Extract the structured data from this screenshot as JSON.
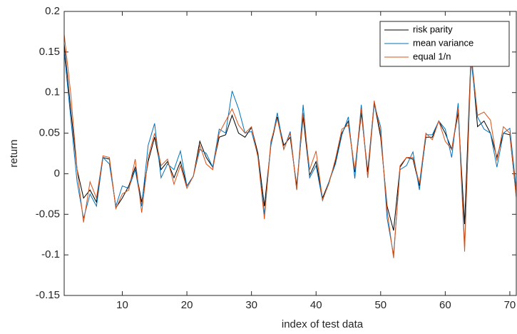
{
  "chart_data": {
    "type": "line",
    "xlabel": "index of test data",
    "ylabel": "return",
    "x": [
      1,
      2,
      3,
      4,
      5,
      6,
      7,
      8,
      9,
      10,
      11,
      12,
      13,
      14,
      15,
      16,
      17,
      18,
      19,
      20,
      21,
      22,
      23,
      24,
      25,
      26,
      27,
      28,
      29,
      30,
      31,
      32,
      33,
      34,
      35,
      36,
      37,
      38,
      39,
      40,
      41,
      42,
      43,
      44,
      45,
      46,
      47,
      48,
      49,
      50,
      51,
      52,
      53,
      54,
      55,
      56,
      57,
      58,
      59,
      60,
      61,
      62,
      63,
      64,
      65,
      66,
      67,
      68,
      69,
      70,
      71
    ],
    "xlim": [
      1,
      71
    ],
    "xticks": [
      10,
      20,
      30,
      40,
      50,
      60,
      70
    ],
    "ylim": [
      -0.15,
      0.2
    ],
    "yticks": [
      -0.15,
      -0.1,
      -0.05,
      0,
      0.05,
      0.1,
      0.15,
      0.2
    ],
    "legend_position": "upper right",
    "series": [
      {
        "name": "risk parity",
        "color": "#000000",
        "values": [
          0.16,
          0.08,
          0.005,
          -0.03,
          -0.02,
          -0.035,
          0.02,
          0.018,
          -0.042,
          -0.03,
          -0.015,
          0.008,
          -0.035,
          0.015,
          0.045,
          0.005,
          0.015,
          -0.005,
          0.015,
          -0.015,
          -0.003,
          0.04,
          0.02,
          0.008,
          0.045,
          0.048,
          0.072,
          0.05,
          0.045,
          0.057,
          0.025,
          -0.04,
          0.035,
          0.07,
          0.035,
          0.045,
          -0.015,
          0.07,
          -0.002,
          0.015,
          -0.03,
          -0.01,
          0.015,
          0.05,
          0.065,
          0.002,
          0.075,
          0.002,
          0.088,
          0.045,
          -0.04,
          -0.07,
          0.008,
          0.02,
          0.018,
          -0.015,
          0.045,
          0.045,
          0.065,
          0.05,
          0.03,
          0.075,
          -0.062,
          0.15,
          0.058,
          0.065,
          0.05,
          0.02,
          0.05,
          0.048,
          -0.028
        ]
      },
      {
        "name": "mean variance",
        "color": "#0072bd",
        "values": [
          0.15,
          0.07,
          -0.01,
          -0.055,
          -0.025,
          -0.04,
          0.02,
          0.012,
          -0.04,
          -0.015,
          -0.018,
          0.005,
          -0.04,
          0.035,
          0.062,
          -0.005,
          0.012,
          0.005,
          0.028,
          -0.015,
          -0.003,
          0.03,
          0.025,
          0.008,
          0.055,
          0.05,
          0.102,
          0.08,
          0.05,
          0.052,
          0.022,
          -0.05,
          0.035,
          0.075,
          0.03,
          0.052,
          -0.02,
          0.085,
          -0.005,
          0.01,
          -0.033,
          -0.01,
          0.012,
          0.048,
          0.07,
          -0.006,
          0.085,
          -0.005,
          0.085,
          0.058,
          -0.055,
          -0.1,
          0.005,
          0.01,
          0.027,
          -0.02,
          0.048,
          0.048,
          0.065,
          0.055,
          0.02,
          0.087,
          -0.09,
          0.14,
          0.07,
          0.055,
          0.05,
          0.008,
          0.05,
          0.056,
          -0.02
        ]
      },
      {
        "name": "equal 1/n",
        "color": "#d95319",
        "values": [
          0.172,
          0.1,
          0.005,
          -0.06,
          -0.01,
          -0.03,
          0.022,
          0.02,
          -0.043,
          -0.025,
          -0.02,
          0.018,
          -0.048,
          0.02,
          0.05,
          0.01,
          0.018,
          -0.013,
          0.01,
          -0.018,
          -0.003,
          0.035,
          0.012,
          0.005,
          0.05,
          0.065,
          0.08,
          0.06,
          0.05,
          0.058,
          0.02,
          -0.056,
          0.04,
          0.068,
          0.03,
          0.05,
          -0.02,
          0.075,
          0.005,
          0.028,
          -0.032,
          -0.012,
          0.018,
          0.055,
          0.06,
          0.005,
          0.08,
          -0.005,
          0.09,
          0.05,
          -0.045,
          -0.104,
          0.01,
          0.02,
          0.02,
          -0.012,
          0.05,
          0.042,
          0.065,
          0.04,
          0.03,
          0.08,
          -0.096,
          0.15,
          0.072,
          0.076,
          0.066,
          0.016,
          0.058,
          0.05,
          -0.03
        ]
      }
    ]
  }
}
